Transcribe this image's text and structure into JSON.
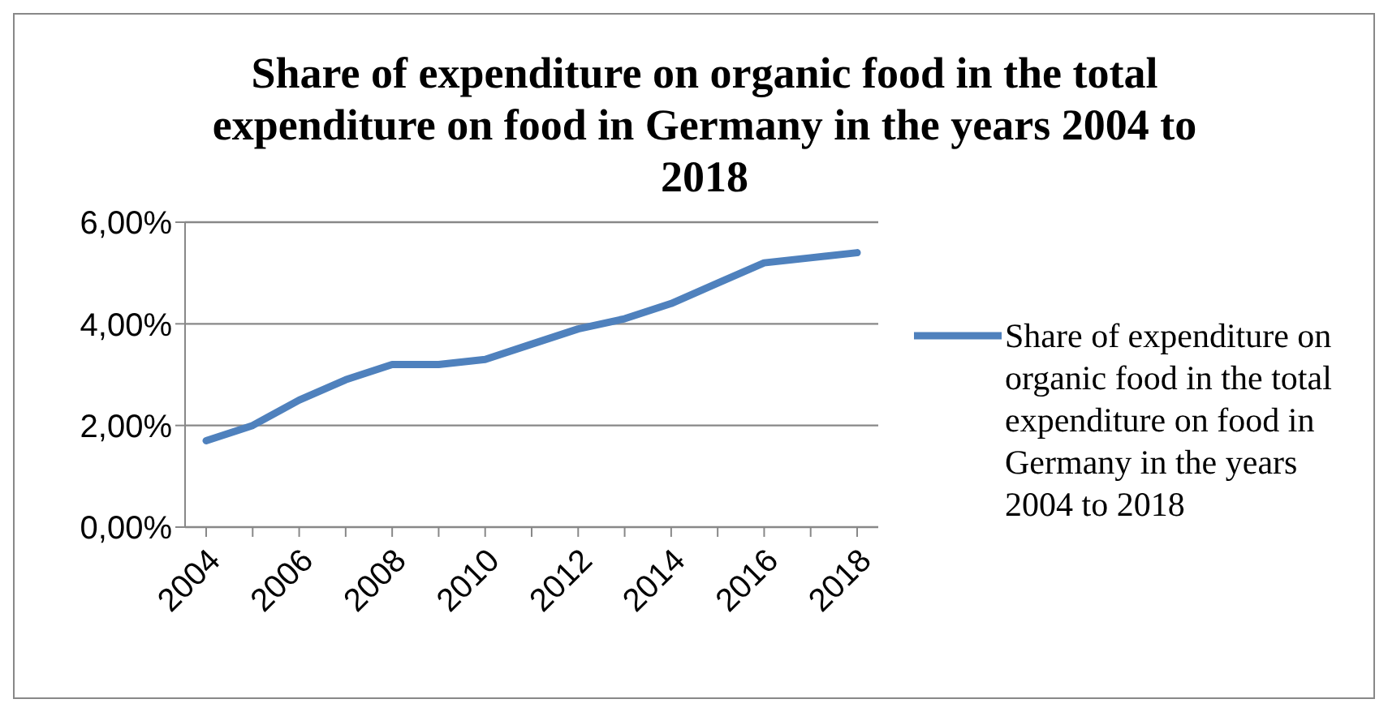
{
  "chart_data": {
    "type": "line",
    "title": "Share of expenditure on organic food in the total expenditure on food in Germany in the years 2004 to 2018",
    "categories": [
      "2004",
      null,
      "2006",
      null,
      "2008",
      null,
      "2010",
      null,
      "2012",
      null,
      "2014",
      null,
      "2016",
      null,
      "2018"
    ],
    "series": [
      {
        "name": "Share of expenditure on organic food in the total expenditure on food in Germany in the years 2004 to 2018",
        "color": "#4f81bd",
        "values": [
          1.7,
          2.0,
          2.5,
          2.9,
          3.2,
          3.2,
          3.3,
          3.6,
          3.9,
          4.1,
          4.4,
          4.8,
          5.2,
          5.3,
          5.4
        ]
      }
    ],
    "ylim": [
      0,
      6
    ],
    "yticks": [
      {
        "value": 0,
        "label": "0,00%"
      },
      {
        "value": 2,
        "label": "2,00%"
      },
      {
        "value": 4,
        "label": "4,00%"
      },
      {
        "value": 6,
        "label": "6,00%"
      }
    ],
    "grid": "y",
    "legend": "right",
    "marker": "none",
    "line_style": "solid"
  }
}
